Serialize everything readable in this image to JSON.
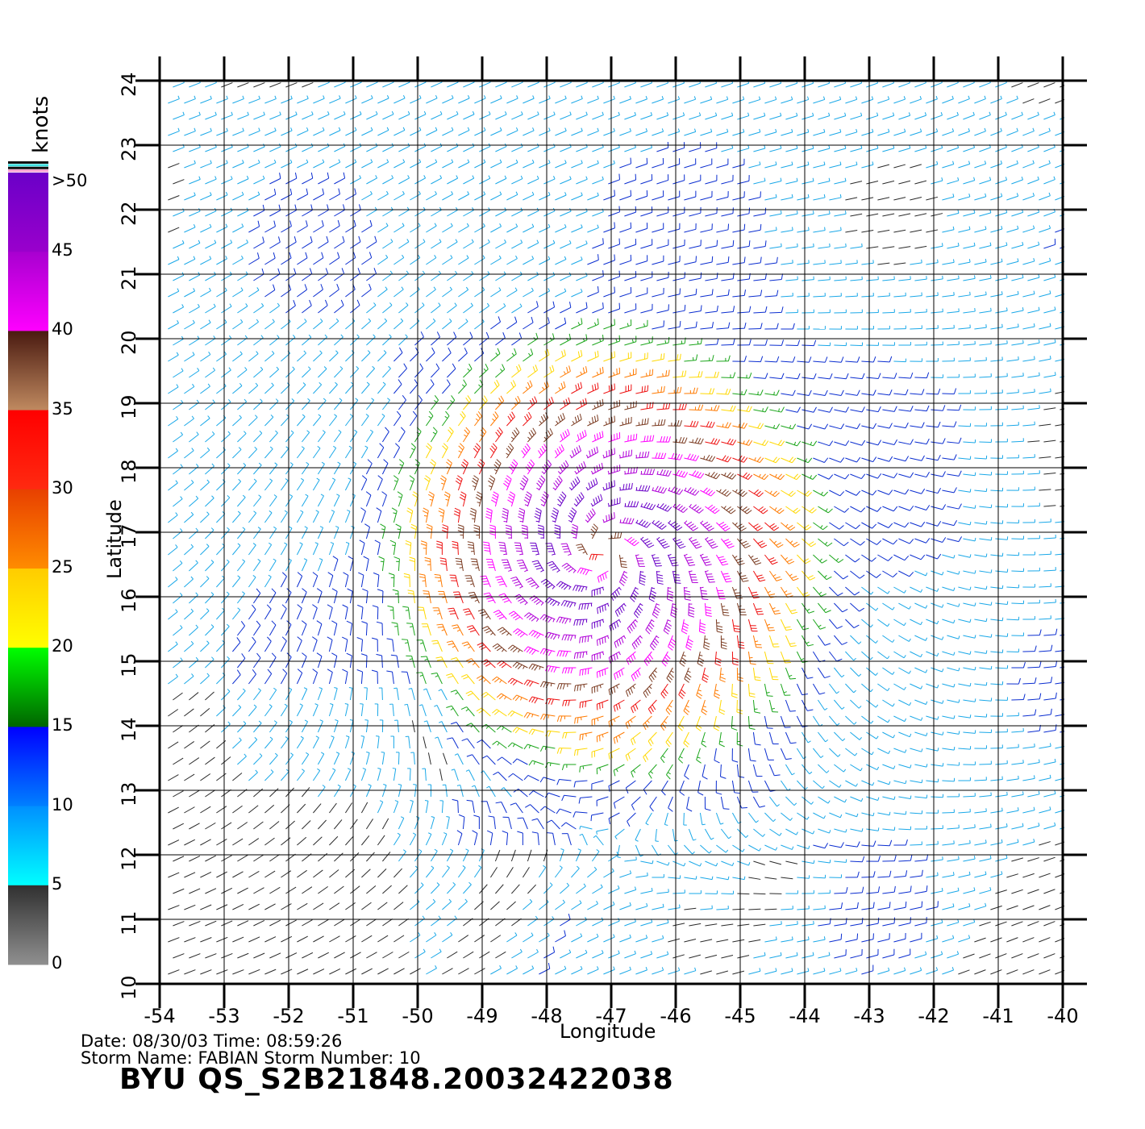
{
  "colorbar": {
    "title": "knots",
    "labels": [
      ">50",
      "45",
      "40",
      "35",
      "30",
      "25",
      "20",
      "15",
      "10",
      "5",
      "0"
    ],
    "bands": [
      {
        "from": 50,
        "to": 45,
        "top": "#6a00c8",
        "bottom": "#9a00cc"
      },
      {
        "from": 45,
        "to": 40,
        "top": "#a800d0",
        "bottom": "#ff00ff"
      },
      {
        "from": 40,
        "to": 35,
        "top": "#4a1a10",
        "bottom": "#c08a60"
      },
      {
        "from": 35,
        "to": 30,
        "top": "#ff0000",
        "bottom": "#ff2a10"
      },
      {
        "from": 30,
        "to": 25,
        "top": "#e84000",
        "bottom": "#ff8c00"
      },
      {
        "from": 25,
        "to": 20,
        "top": "#ffcc00",
        "bottom": "#ffff00"
      },
      {
        "from": 20,
        "to": 15,
        "top": "#00ff00",
        "bottom": "#006400"
      },
      {
        "from": 15,
        "to": 10,
        "top": "#0000ff",
        "bottom": "#0080ff"
      },
      {
        "from": 10,
        "to": 5,
        "top": "#0090ff",
        "bottom": "#00ffff"
      },
      {
        "from": 5,
        "to": 0,
        "top": "#303030",
        "bottom": "#909090"
      }
    ]
  },
  "axes": {
    "xlabel": "Longitude",
    "ylabel": "Latitude",
    "lon_ticks": [
      "-54",
      "-53",
      "-52",
      "-51",
      "-50",
      "-49",
      "-48",
      "-47",
      "-46",
      "-45",
      "-44",
      "-43",
      "-42",
      "-41",
      "-40"
    ],
    "lat_ticks": [
      "10",
      "11",
      "12",
      "13",
      "14",
      "15",
      "16",
      "17",
      "18",
      "19",
      "20",
      "21",
      "22",
      "23",
      "24"
    ],
    "lon_range": [
      -54,
      -40
    ],
    "lat_range": [
      10,
      24
    ],
    "grid": true
  },
  "storm": {
    "center_lon": -47.1,
    "center_lat": 16.7,
    "max_speed_knots": 52
  },
  "info": {
    "date_line": "Date: 08/30/03   Time: 08:59:26",
    "storm_line": "Storm  Name:  FABIAN    Storm  Number:  10",
    "file_id": "BYU  QS_S2B21848.20032422038"
  }
}
